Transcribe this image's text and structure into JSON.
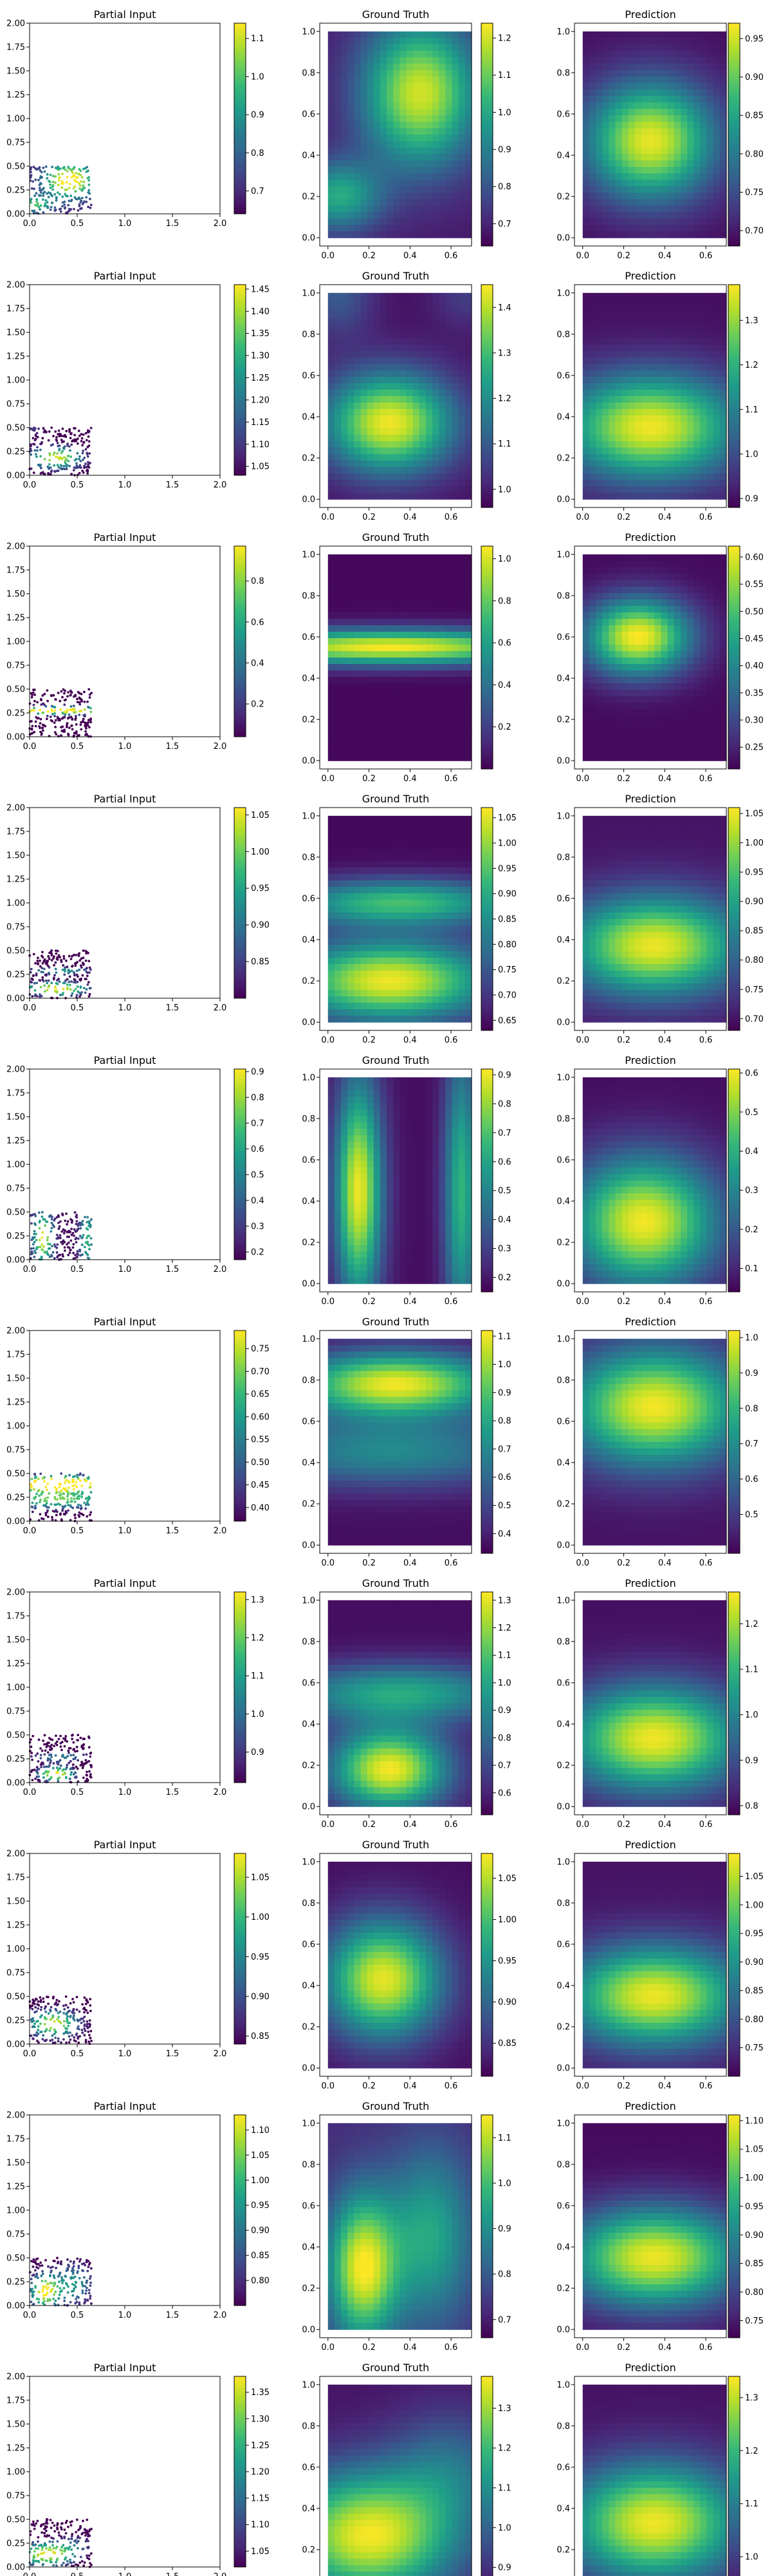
{
  "panel_titles": {
    "input": "Partial Input",
    "truth": "Ground Truth",
    "prediction": "Prediction"
  },
  "chart_data": [
    {
      "type": "figure-grid",
      "rows": 10,
      "columns": [
        "Partial Input",
        "Ground Truth",
        "Prediction"
      ],
      "colormap": "viridis",
      "input_axes": {
        "xlim": [
          0,
          2
        ],
        "ylim": [
          0,
          2
        ],
        "xticks": [
          "0.0",
          "0.5",
          "1.0",
          "1.5",
          "2.0"
        ],
        "yticks": [
          "0.00",
          "0.25",
          "0.50",
          "0.75",
          "1.00",
          "1.25",
          "1.50",
          "1.75",
          "2.00"
        ]
      },
      "field_axes": {
        "xlim": [
          -0.04,
          0.7
        ],
        "ylim": [
          -0.04,
          1.04
        ],
        "xticks": [
          "0.0",
          "0.2",
          "0.4",
          "0.6"
        ],
        "yticks": [
          "0.0",
          "0.2",
          "0.4",
          "0.6",
          "0.8",
          "1.0"
        ]
      },
      "observed_region": {
        "x": [
          0,
          0.65
        ],
        "y": [
          0,
          0.5
        ]
      }
    }
  ],
  "rows": [
    {
      "input_colorbar": {
        "range": [
          0.64,
          1.14
        ],
        "ticks": [
          "0.7",
          "0.8",
          "0.9",
          "1.0",
          "1.1"
        ]
      },
      "truth": {
        "range": [
          0.64,
          1.24
        ],
        "ticks": [
          "0.7",
          "0.8",
          "0.9",
          "1.0",
          "1.1",
          "1.2"
        ],
        "blobs": [
          [
            0.45,
            0.7,
            1.2,
            0.2,
            0.25
          ],
          [
            0.05,
            0.2,
            1.0,
            0.15,
            0.12
          ]
        ],
        "base": 0.68
      },
      "prediction": {
        "range": [
          0.68,
          0.97
        ],
        "ticks": [
          "0.70",
          "0.75",
          "0.80",
          "0.85",
          "0.90",
          "0.95"
        ],
        "blobs": [
          [
            0.33,
            0.47,
            0.96,
            0.22,
            0.2
          ]
        ],
        "base": 0.69
      }
    },
    {
      "input_colorbar": {
        "range": [
          1.03,
          1.46
        ],
        "ticks": [
          "1.05",
          "1.10",
          "1.15",
          "1.20",
          "1.25",
          "1.30",
          "1.35",
          "1.40",
          "1.45"
        ]
      },
      "truth": {
        "range": [
          0.96,
          1.45
        ],
        "ticks": [
          "1.0",
          "1.1",
          "1.2",
          "1.3",
          "1.4"
        ],
        "blobs": [
          [
            0.3,
            0.37,
            1.44,
            0.22,
            0.17
          ],
          [
            0.05,
            1.0,
            1.1,
            0.12,
            0.15
          ],
          [
            0.68,
            1.0,
            1.05,
            0.12,
            0.12
          ]
        ],
        "base": 0.98
      },
      "prediction": {
        "range": [
          0.88,
          1.38
        ],
        "ticks": [
          "0.9",
          "1.0",
          "1.1",
          "1.2",
          "1.3"
        ],
        "blobs": [
          [
            0.33,
            0.35,
            1.37,
            0.3,
            0.18
          ]
        ],
        "base": 0.9
      }
    },
    {
      "input_colorbar": {
        "range": [
          0.04,
          0.97
        ],
        "ticks": [
          "0.2",
          "0.4",
          "0.6",
          "0.8"
        ]
      },
      "truth": {
        "range": [
          0.0,
          1.06
        ],
        "ticks": [
          "0.2",
          "0.4",
          "0.6",
          "0.8",
          "1.0"
        ],
        "blobs": [
          [
            0.3,
            0.55,
            1.05,
            0.6,
            0.06
          ]
        ],
        "base": 0.02
      },
      "prediction": {
        "range": [
          0.21,
          0.62
        ],
        "ticks": [
          "0.25",
          "0.30",
          "0.35",
          "0.40",
          "0.45",
          "0.50",
          "0.55",
          "0.60"
        ],
        "blobs": [
          [
            0.27,
            0.6,
            0.62,
            0.18,
            0.13
          ]
        ],
        "base": 0.22
      }
    },
    {
      "input_colorbar": {
        "range": [
          0.8,
          1.06
        ],
        "ticks": [
          "0.85",
          "0.90",
          "0.95",
          "1.00",
          "1.05"
        ]
      },
      "truth": {
        "range": [
          0.63,
          1.07
        ],
        "ticks": [
          "0.65",
          "0.70",
          "0.75",
          "0.80",
          "0.85",
          "0.90",
          "0.95",
          "1.00",
          "1.05"
        ],
        "blobs": [
          [
            0.3,
            0.2,
            1.06,
            0.35,
            0.14
          ],
          [
            0.35,
            0.58,
            0.93,
            0.4,
            0.08
          ]
        ],
        "base": 0.64
      },
      "prediction": {
        "range": [
          0.68,
          1.06
        ],
        "ticks": [
          "0.70",
          "0.75",
          "0.80",
          "0.85",
          "0.90",
          "0.95",
          "1.00",
          "1.05"
        ],
        "blobs": [
          [
            0.35,
            0.37,
            1.05,
            0.3,
            0.17
          ]
        ],
        "base": 0.7
      }
    },
    {
      "input_colorbar": {
        "range": [
          0.17,
          0.91
        ],
        "ticks": [
          "0.2",
          "0.3",
          "0.4",
          "0.5",
          "0.6",
          "0.7",
          "0.8",
          "0.9"
        ]
      },
      "truth": {
        "range": [
          0.15,
          0.92
        ],
        "ticks": [
          "0.2",
          "0.3",
          "0.4",
          "0.5",
          "0.6",
          "0.7",
          "0.8",
          "0.9"
        ],
        "blobs": [
          [
            0.15,
            0.45,
            0.9,
            0.08,
            0.38
          ],
          [
            0.65,
            0.45,
            0.65,
            0.06,
            0.5
          ]
        ],
        "base": 0.18
      },
      "prediction": {
        "range": [
          0.04,
          0.61
        ],
        "ticks": [
          "0.1",
          "0.2",
          "0.3",
          "0.4",
          "0.5",
          "0.6"
        ],
        "blobs": [
          [
            0.3,
            0.3,
            0.6,
            0.25,
            0.22
          ]
        ],
        "base": 0.06
      }
    },
    {
      "input_colorbar": {
        "range": [
          0.37,
          0.79
        ],
        "ticks": [
          "0.40",
          "0.45",
          "0.50",
          "0.55",
          "0.60",
          "0.65",
          "0.70",
          "0.75"
        ]
      },
      "truth": {
        "range": [
          0.33,
          1.12
        ],
        "ticks": [
          "0.4",
          "0.5",
          "0.6",
          "0.7",
          "0.8",
          "0.9",
          "1.0",
          "1.1"
        ],
        "blobs": [
          [
            0.33,
            0.78,
            1.1,
            0.35,
            0.11
          ],
          [
            0.3,
            0.45,
            0.7,
            0.5,
            0.12
          ]
        ],
        "base": 0.36
      },
      "prediction": {
        "range": [
          0.39,
          1.02
        ],
        "ticks": [
          "0.5",
          "0.6",
          "0.7",
          "0.8",
          "0.9",
          "1.0"
        ],
        "blobs": [
          [
            0.35,
            0.67,
            1.01,
            0.3,
            0.2
          ]
        ],
        "base": 0.42
      }
    },
    {
      "input_colorbar": {
        "range": [
          0.82,
          1.32
        ],
        "ticks": [
          "0.9",
          "1.0",
          "1.1",
          "1.2",
          "1.3"
        ]
      },
      "truth": {
        "range": [
          0.52,
          1.33
        ],
        "ticks": [
          "0.6",
          "0.7",
          "0.8",
          "0.9",
          "1.0",
          "1.1",
          "1.2",
          "1.3"
        ],
        "blobs": [
          [
            0.3,
            0.18,
            1.32,
            0.2,
            0.14
          ],
          [
            0.35,
            0.55,
            1.0,
            0.4,
            0.1
          ]
        ],
        "base": 0.55
      },
      "prediction": {
        "range": [
          0.78,
          1.27
        ],
        "ticks": [
          "0.8",
          "0.9",
          "1.0",
          "1.1",
          "1.2"
        ],
        "blobs": [
          [
            0.35,
            0.33,
            1.26,
            0.3,
            0.18
          ]
        ],
        "base": 0.8
      }
    },
    {
      "input_colorbar": {
        "range": [
          0.84,
          1.08
        ],
        "ticks": [
          "0.85",
          "0.90",
          "0.95",
          "1.00",
          "1.05"
        ]
      },
      "truth": {
        "range": [
          0.81,
          1.08
        ],
        "ticks": [
          "0.85",
          "0.90",
          "0.95",
          "1.00",
          "1.05"
        ],
        "blobs": [
          [
            0.27,
            0.43,
            1.07,
            0.2,
            0.2
          ]
        ],
        "base": 0.82
      },
      "prediction": {
        "range": [
          0.7,
          1.09
        ],
        "ticks": [
          "0.75",
          "0.80",
          "0.85",
          "0.90",
          "0.95",
          "1.00",
          "1.05"
        ],
        "blobs": [
          [
            0.35,
            0.35,
            1.08,
            0.3,
            0.17
          ]
        ],
        "base": 0.72
      }
    },
    {
      "input_colorbar": {
        "range": [
          0.75,
          1.13
        ],
        "ticks": [
          "0.80",
          "0.85",
          "0.90",
          "0.95",
          "1.00",
          "1.05",
          "1.10"
        ]
      },
      "truth": {
        "range": [
          0.66,
          1.15
        ],
        "ticks": [
          "0.7",
          "0.8",
          "0.9",
          "1.0",
          "1.1"
        ],
        "blobs": [
          [
            0.17,
            0.3,
            1.14,
            0.12,
            0.25
          ],
          [
            0.5,
            0.45,
            0.95,
            0.15,
            0.3
          ]
        ],
        "base": 0.72
      },
      "prediction": {
        "range": [
          0.72,
          1.11
        ],
        "ticks": [
          "0.75",
          "0.80",
          "0.85",
          "0.90",
          "0.95",
          "1.00",
          "1.05",
          "1.10"
        ],
        "blobs": [
          [
            0.35,
            0.35,
            1.1,
            0.3,
            0.17
          ]
        ],
        "base": 0.73
      }
    },
    {
      "input_colorbar": {
        "range": [
          1.02,
          1.38
        ],
        "ticks": [
          "1.05",
          "1.10",
          "1.15",
          "1.20",
          "1.25",
          "1.30",
          "1.35"
        ]
      },
      "truth": {
        "range": [
          0.82,
          1.38
        ],
        "ticks": [
          "0.9",
          "1.0",
          "1.1",
          "1.2",
          "1.3"
        ],
        "blobs": [
          [
            0.2,
            0.27,
            1.37,
            0.3,
            0.22
          ],
          [
            0.6,
            0.6,
            1.0,
            0.2,
            0.2
          ]
        ],
        "base": 0.85
      },
      "prediction": {
        "range": [
          0.92,
          1.34
        ],
        "ticks": [
          "1.0",
          "1.1",
          "1.2",
          "1.3"
        ],
        "blobs": [
          [
            0.35,
            0.33,
            1.33,
            0.3,
            0.2
          ]
        ],
        "base": 0.94
      }
    }
  ]
}
